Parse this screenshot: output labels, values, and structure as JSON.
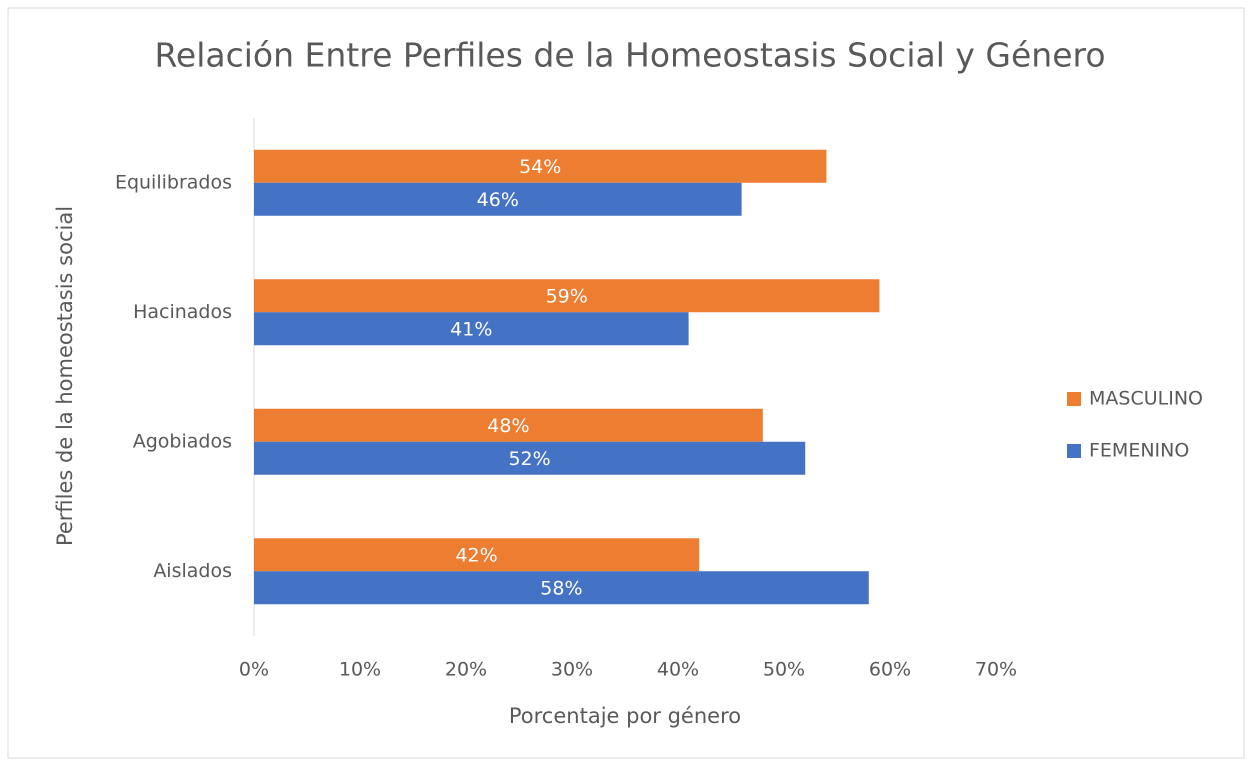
{
  "chart_data": {
    "type": "hbar",
    "title": "Relación Entre Perfiles de la Homeostasis Social y Género",
    "xlabel": "Porcentaje por género",
    "ylabel": "Perfiles de la homeostasis social",
    "categories": [
      "Equilibrados",
      "Hacinados",
      "Agobiados",
      "Aislados"
    ],
    "series": [
      {
        "name": "MASCULINO",
        "color": "#ed7d31",
        "values": [
          54,
          59,
          48,
          42
        ],
        "value_labels": [
          "54%",
          "59%",
          "48%",
          "42%"
        ]
      },
      {
        "name": "FEMENINO",
        "color": "#4472c4",
        "values": [
          46,
          41,
          52,
          58
        ],
        "value_labels": [
          "46%",
          "41%",
          "52%",
          "58%"
        ]
      }
    ],
    "xlim": [
      0,
      70
    ],
    "xticks": [
      {
        "value": 0,
        "label": "0%"
      },
      {
        "value": 10,
        "label": "10%"
      },
      {
        "value": 20,
        "label": "20%"
      },
      {
        "value": 30,
        "label": "30%"
      },
      {
        "value": 40,
        "label": "40%"
      },
      {
        "value": 50,
        "label": "50%"
      },
      {
        "value": 60,
        "label": "60%"
      },
      {
        "value": 70,
        "label": "70%"
      }
    ],
    "grid": false,
    "legend": "right"
  }
}
